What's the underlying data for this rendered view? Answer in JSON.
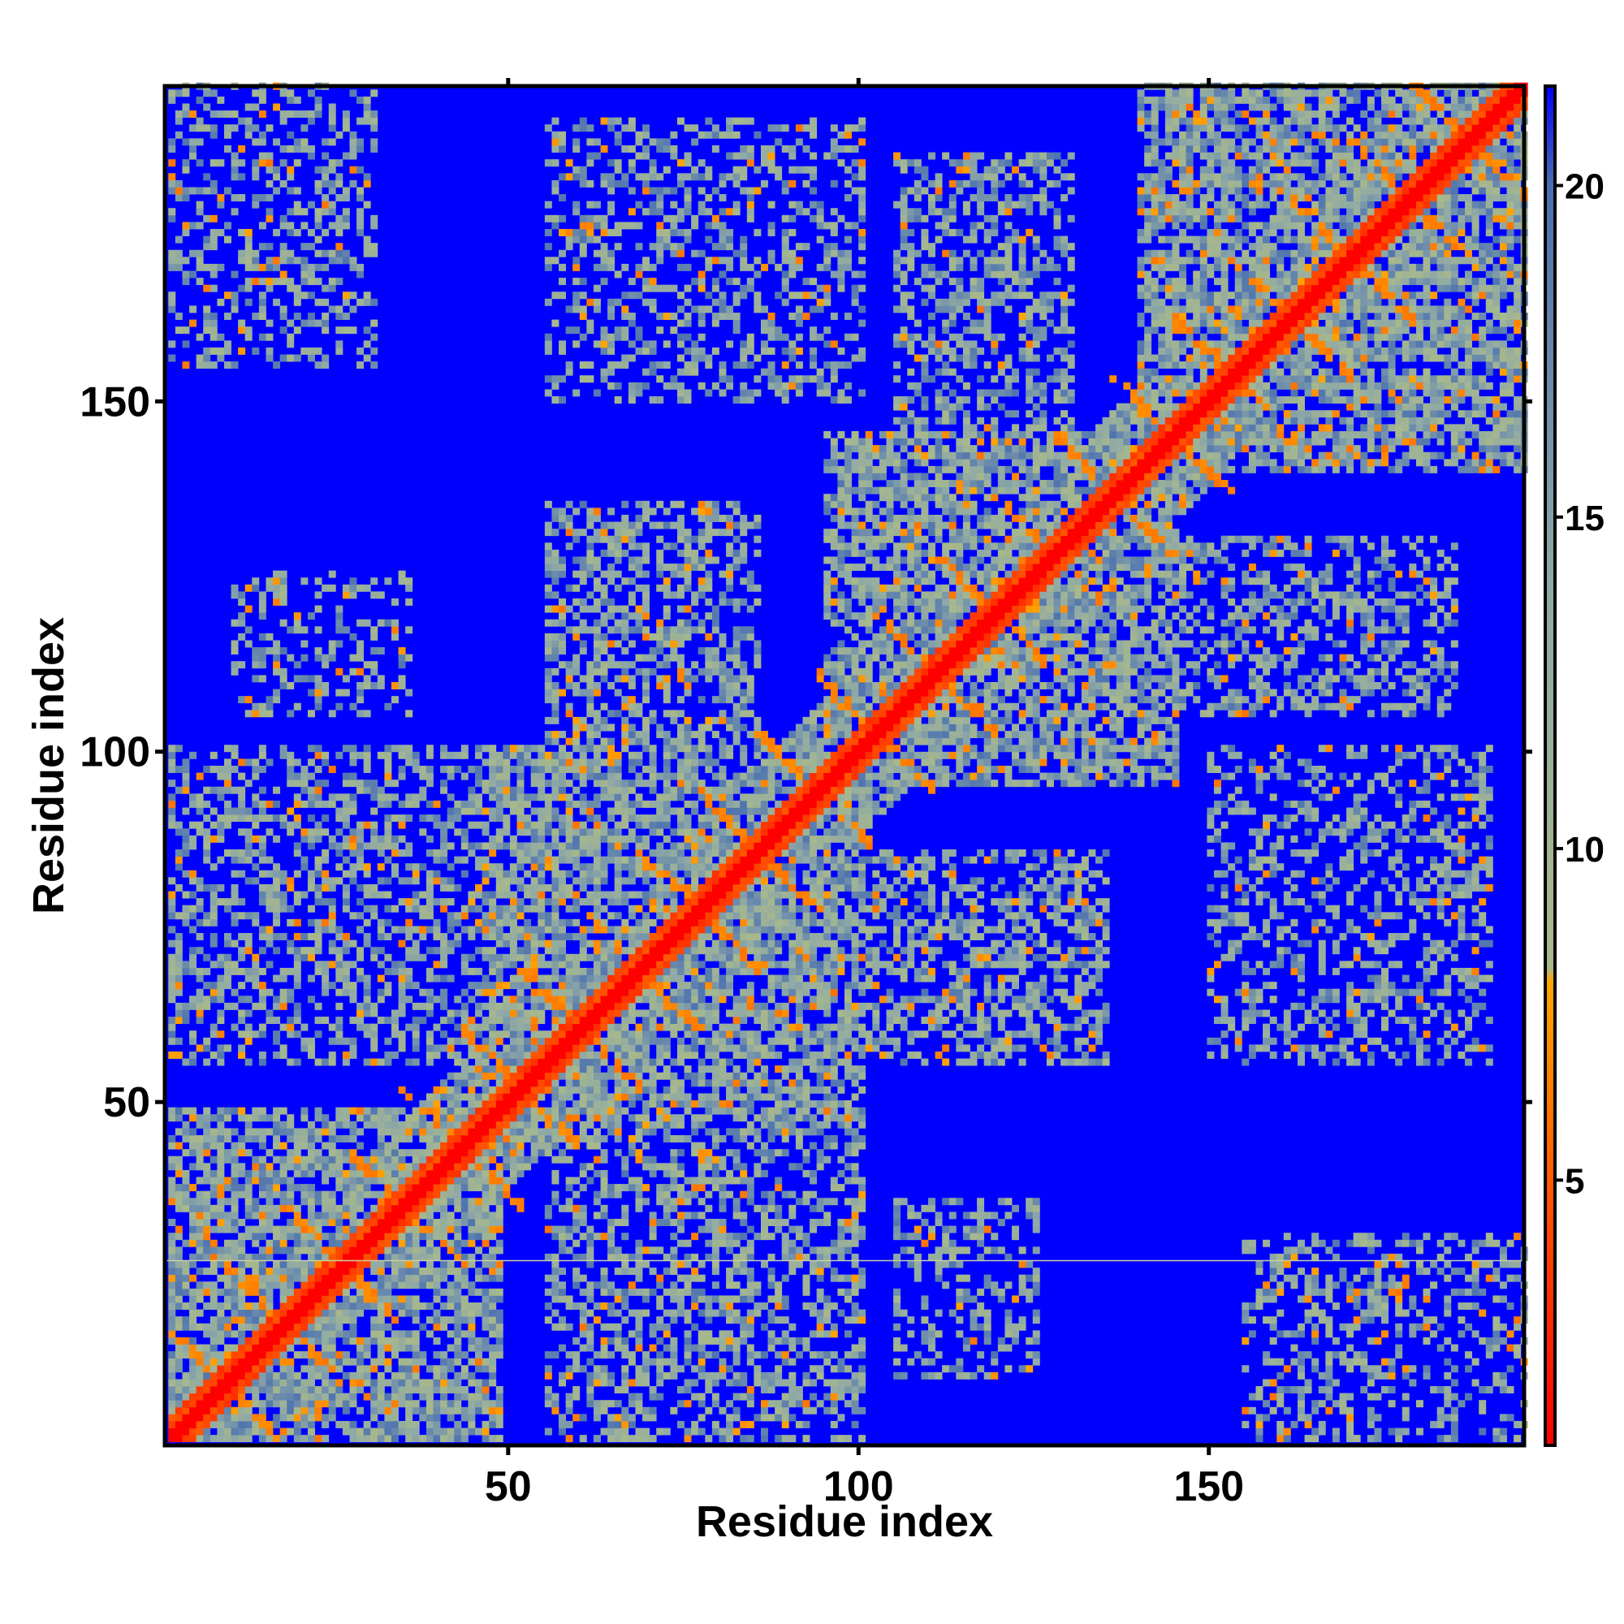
{
  "chart_data": {
    "type": "heatmap",
    "title": "",
    "xlabel": "Residue index",
    "ylabel": "Residue index",
    "n_residues": 195,
    "xlim": [
      1,
      195
    ],
    "ylim": [
      1,
      195
    ],
    "x_ticks": [
      50,
      100,
      150
    ],
    "x_tick_labels": [
      "50",
      "100",
      "150"
    ],
    "y_ticks": [
      50,
      100,
      150
    ],
    "y_tick_labels": [
      "50",
      "100",
      "150"
    ],
    "grid": false,
    "colorbar": {
      "position": "right",
      "range": [
        1,
        21.5
      ],
      "ticks": [
        5,
        10,
        15,
        20
      ],
      "tick_labels": [
        "5",
        "10",
        "15",
        "20"
      ],
      "color_stops": [
        {
          "value": 1,
          "color": "#ff0000"
        },
        {
          "value": 5,
          "color": "#ff5a00"
        },
        {
          "value": 8,
          "color": "#ffa500"
        },
        {
          "value": 8.2,
          "color": "#a9b98a"
        },
        {
          "value": 14,
          "color": "#8fa9a6"
        },
        {
          "value": 20,
          "color": "#4a6fb0"
        },
        {
          "value": 21.5,
          "color": "#0000ff"
        }
      ]
    },
    "colors": {
      "background": "#0000ff",
      "near": "#ff0000",
      "close": "#ffa500",
      "mid": "#a9b98a",
      "far": "#6f8fc0"
    },
    "contact_blocks": [
      {
        "x": [
          1,
          48
        ],
        "y": [
          1,
          48
        ],
        "level": "dense"
      },
      {
        "x": [
          45,
          100
        ],
        "y": [
          45,
          100
        ],
        "level": "dense"
      },
      {
        "x": [
          95,
          145
        ],
        "y": [
          95,
          145
        ],
        "level": "dense"
      },
      {
        "x": [
          140,
          195
        ],
        "y": [
          140,
          195
        ],
        "level": "dense"
      },
      {
        "x": [
          55,
          85
        ],
        "y": [
          100,
          135
        ],
        "level": "sparse"
      },
      {
        "x": [
          100,
          135
        ],
        "y": [
          55,
          85
        ],
        "level": "sparse"
      },
      {
        "x": [
          105,
          130
        ],
        "y": [
          140,
          185
        ],
        "level": "sparse"
      },
      {
        "x": [
          140,
          185
        ],
        "y": [
          105,
          130
        ],
        "level": "sparse"
      },
      {
        "x": [
          1,
          45
        ],
        "y": [
          55,
          100
        ],
        "level": "sparse"
      },
      {
        "x": [
          55,
          100
        ],
        "y": [
          1,
          45
        ],
        "level": "sparse"
      },
      {
        "x": [
          10,
          35
        ],
        "y": [
          105,
          125
        ],
        "level": "faint"
      },
      {
        "x": [
          105,
          125
        ],
        "y": [
          10,
          35
        ],
        "level": "faint"
      },
      {
        "x": [
          1,
          30
        ],
        "y": [
          155,
          195
        ],
        "level": "faint"
      },
      {
        "x": [
          155,
          195
        ],
        "y": [
          1,
          30
        ],
        "level": "faint"
      },
      {
        "x": [
          55,
          80
        ],
        "y": [
          155,
          180
        ],
        "level": "faint"
      },
      {
        "x": [
          155,
          180
        ],
        "y": [
          55,
          80
        ],
        "level": "faint"
      },
      {
        "x": [
          150,
          190
        ],
        "y": [
          55,
          100
        ],
        "level": "faint"
      },
      {
        "x": [
          55,
          100
        ],
        "y": [
          150,
          190
        ],
        "level": "faint"
      }
    ],
    "highlight_row": 27
  }
}
